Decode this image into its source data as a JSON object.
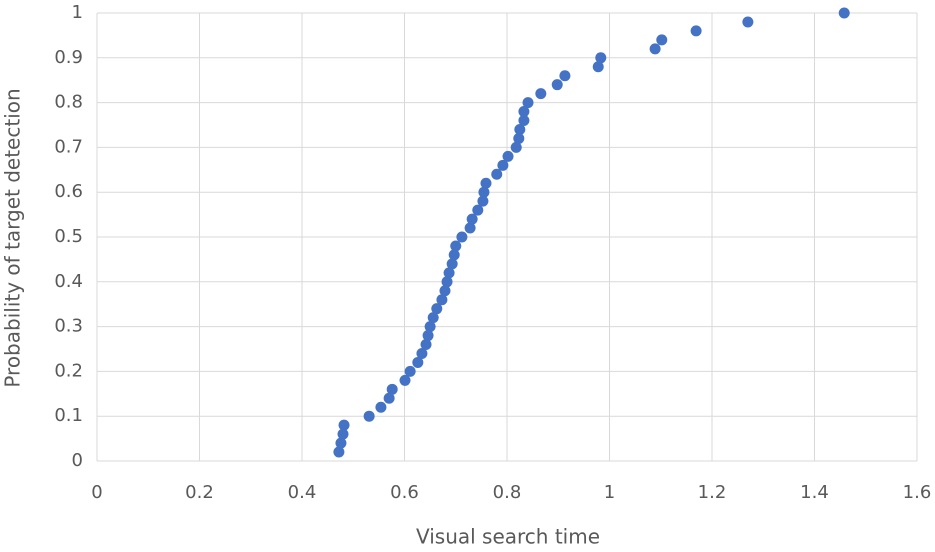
{
  "chart_data": {
    "type": "scatter",
    "x_label": "Visual search time",
    "y_label": "Probability of target detection",
    "series": [
      {
        "color": "#4472c4",
        "x": [
          0.472,
          0.476,
          0.48,
          0.482,
          0.531,
          0.554,
          0.57,
          0.576,
          0.601,
          0.611,
          0.626,
          0.634,
          0.642,
          0.646,
          0.65,
          0.656,
          0.663,
          0.673,
          0.679,
          0.683,
          0.687,
          0.693,
          0.697,
          0.7,
          0.712,
          0.728,
          0.732,
          0.743,
          0.753,
          0.755,
          0.759,
          0.78,
          0.792,
          0.802,
          0.818,
          0.823,
          0.825,
          0.833,
          0.833,
          0.841,
          0.866,
          0.898,
          0.913,
          0.978,
          0.983,
          1.089,
          1.102,
          1.169,
          1.27,
          1.458
        ],
        "values": [
          0.02,
          0.04,
          0.06,
          0.08,
          0.1,
          0.12,
          0.14,
          0.16,
          0.18,
          0.2,
          0.22,
          0.24,
          0.26,
          0.28,
          0.3,
          0.32,
          0.34,
          0.36,
          0.38,
          0.4,
          0.42,
          0.44,
          0.46,
          0.48,
          0.5,
          0.52,
          0.54,
          0.56,
          0.58,
          0.6,
          0.62,
          0.64,
          0.66,
          0.68,
          0.7,
          0.72,
          0.74,
          0.76,
          0.78,
          0.8,
          0.82,
          0.84,
          0.86,
          0.88,
          0.9,
          0.92,
          0.94,
          0.96,
          0.98,
          1.0
        ]
      }
    ],
    "xlim": [
      0,
      1.6
    ],
    "xticks": [
      0,
      0.2,
      0.4,
      0.6,
      0.8,
      1,
      1.2,
      1.4,
      1.6
    ],
    "ylim": [
      0,
      1
    ],
    "yticks": [
      0,
      0.1,
      0.2,
      0.3,
      0.4,
      0.5,
      0.6,
      0.7,
      0.8,
      0.9,
      1
    ],
    "grid": true
  }
}
